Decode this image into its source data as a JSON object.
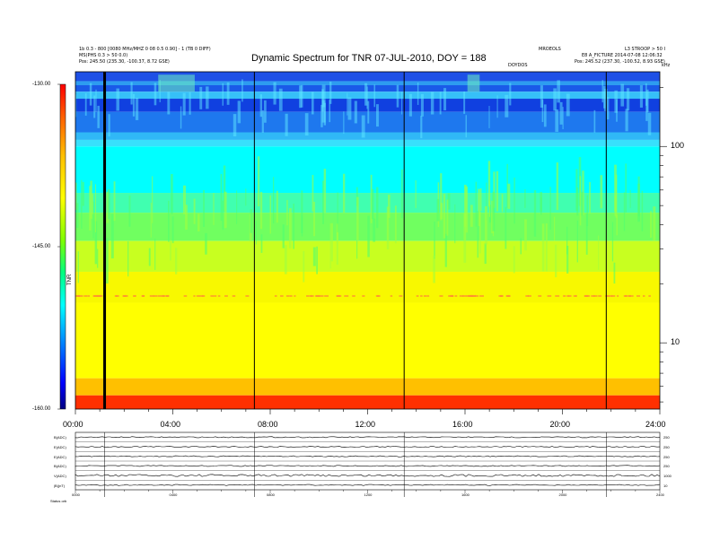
{
  "header": {
    "left_line1": "1b 0.3 - 800 [0080 MHz/MHZ 0 08 0.5 0.90] - 1 (TB 0 DIFF)",
    "left_line2": "MS(PHS 0.3 > 50 0.0)",
    "left_pos": "Pos:    245.50 (235.30, -100.37, 8.72 GSE)",
    "right_line1_a": "MROEOLS",
    "right_line1_b": "L3 STROOP > 50 I",
    "right_line2": "E8 A_FICTURE 2014-07-08 12:06:32",
    "right_pos": "Pos:    245.52 (237.30, -100.52, 8.93 GSE)",
    "center_small": "DOYDOS",
    "corner_small": "kHz"
  },
  "chart_data": {
    "type": "heatmap",
    "title": "Dynamic Spectrum for TNR 07-JUL-2010, DOY = 188",
    "x_tick_labels": [
      "00:00",
      "04:00",
      "08:00",
      "12:00",
      "16:00",
      "20:00",
      "24:00"
    ],
    "x_ticks_hours": [
      0,
      4,
      8,
      12,
      16,
      20,
      24
    ],
    "xlim_hours": [
      0,
      24
    ],
    "yscale": "log",
    "y_tick_labels": [
      "100",
      "10"
    ],
    "y_ticks": [
      100,
      10
    ],
    "ylim": [
      4.6,
      240
    ],
    "ylabel": "",
    "colorbar": {
      "tick_labels": [
        "-130.00",
        "-145.00",
        "-160.00"
      ],
      "ticks": [
        -130,
        -145,
        -160
      ],
      "range": [
        -160,
        -130
      ],
      "label": "TNR",
      "colors": [
        "#000080",
        "#0000ff",
        "#0080ff",
        "#00e0ff",
        "#00ffff",
        "#00ff80",
        "#80ff00",
        "#ffff00",
        "#ffc000",
        "#ff6000",
        "#ff0000",
        "#c00000"
      ]
    },
    "bands_log_freq": [
      {
        "f_hi": 240,
        "f_lo": 215,
        "color": "#1e50e6"
      },
      {
        "f_hi": 215,
        "f_lo": 205,
        "color": "#2d9cf0"
      },
      {
        "f_hi": 205,
        "f_lo": 190,
        "color": "#1a5ae8"
      },
      {
        "f_hi": 190,
        "f_lo": 175,
        "color": "#36c0f8"
      },
      {
        "f_hi": 175,
        "f_lo": 150,
        "color": "#1040e0"
      },
      {
        "f_hi": 150,
        "f_lo": 118,
        "color": "#1e78ee"
      },
      {
        "f_hi": 118,
        "f_lo": 108,
        "color": "#30b8f6"
      },
      {
        "f_hi": 108,
        "f_lo": 100,
        "color": "#38e0fc"
      },
      {
        "f_hi": 100,
        "f_lo": 58,
        "color": "#00ffff"
      },
      {
        "f_hi": 58,
        "f_lo": 46,
        "color": "#40ffb0"
      },
      {
        "f_hi": 46,
        "f_lo": 33,
        "color": "#70ff60"
      },
      {
        "f_hi": 33,
        "f_lo": 23,
        "color": "#c8ff20"
      },
      {
        "f_hi": 23,
        "f_lo": 16,
        "color": "#f8f800"
      },
      {
        "f_hi": 16,
        "f_lo": 6.6,
        "color": "#ffff00"
      },
      {
        "f_hi": 6.6,
        "f_lo": 5.4,
        "color": "#ffc000"
      },
      {
        "f_hi": 5.4,
        "f_lo": 4.6,
        "color": "#ff3000"
      }
    ],
    "vertical_markers_hours": [
      1.2,
      7.35,
      13.5,
      21.8
    ],
    "thick_marker_hour": 1.2
  },
  "subpanels": {
    "labels": [
      "B(ADC)",
      "E(ADC)",
      "E(ADC)",
      "B(ADC)",
      "V(ADC)",
      "|B|(nT)"
    ],
    "right_values": [
      "250",
      "250",
      "250",
      "250",
      "1000",
      "10"
    ],
    "footer_left": "Status   orb",
    "x_tick_labels": [
      "0000",
      "0400",
      "0800",
      "1200",
      "1600",
      "2000",
      "2400"
    ]
  }
}
